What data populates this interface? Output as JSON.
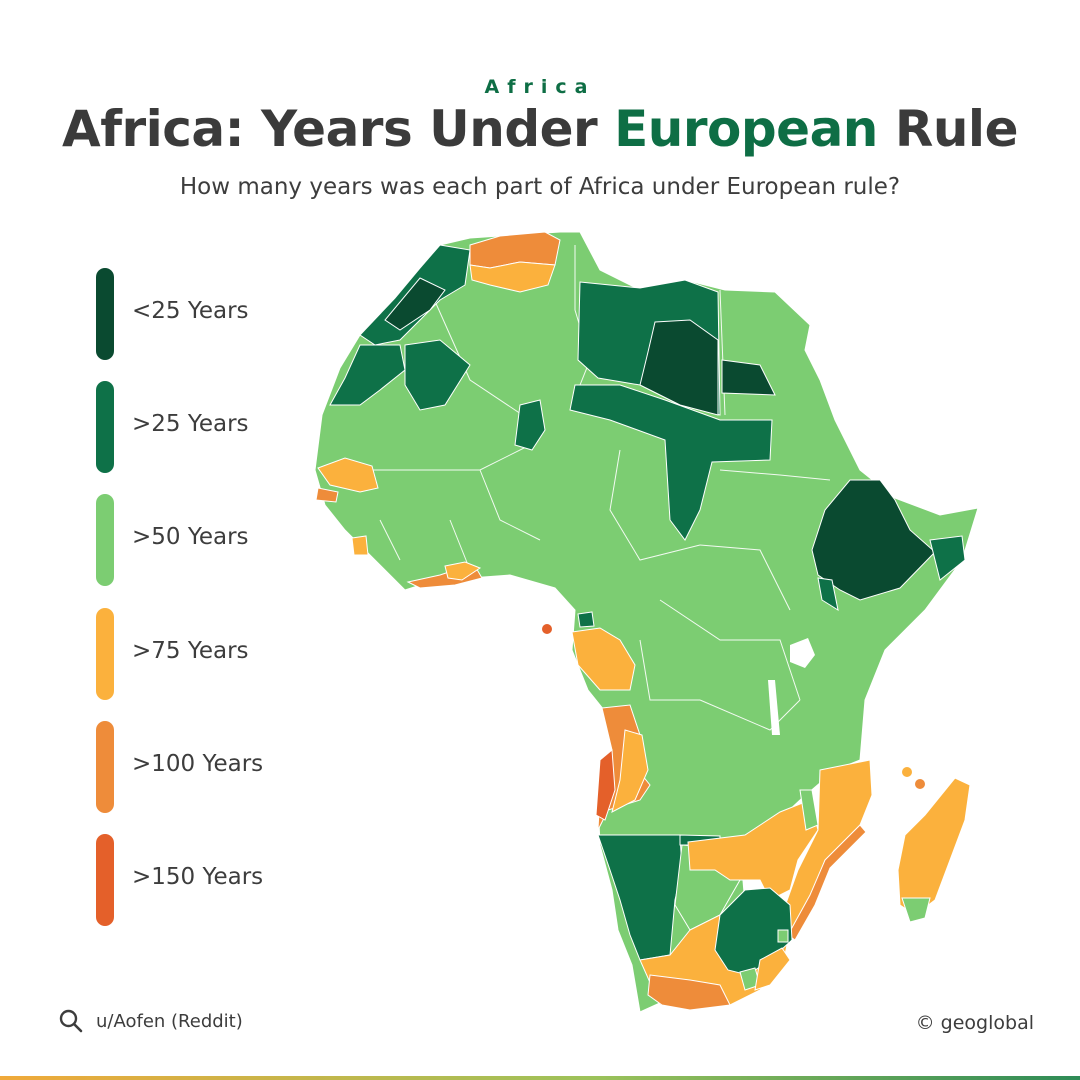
{
  "header": {
    "kicker": "Africa",
    "title_part1": "Africa: Years Under ",
    "title_accent": "European",
    "title_part2": " Rule",
    "subtitle": "How many years was each part of Africa under European rule?"
  },
  "colors": {
    "accent": "#0e6e45",
    "lt25": "#0a4a30",
    "gt25": "#0e7148",
    "gt50": "#7ccd72",
    "gt75": "#fbb13d",
    "gt100": "#ee8c3a",
    "gt150": "#e4602a"
  },
  "legend": [
    {
      "label": "<25 Years",
      "color": "#0a4a30"
    },
    {
      "label": ">25 Years",
      "color": "#0e7148"
    },
    {
      "label": ">50 Years",
      "color": "#7ccd72"
    },
    {
      "label": ">75 Years",
      "color": "#fbb13d"
    },
    {
      "label": ">100 Years",
      "color": "#ee8c3a"
    },
    {
      "label": ">150 Years",
      "color": "#e4602a"
    }
  ],
  "footer": {
    "source_icon": "search-icon",
    "source": "u/Aofen (Reddit)",
    "credit": "© geoglobal"
  }
}
